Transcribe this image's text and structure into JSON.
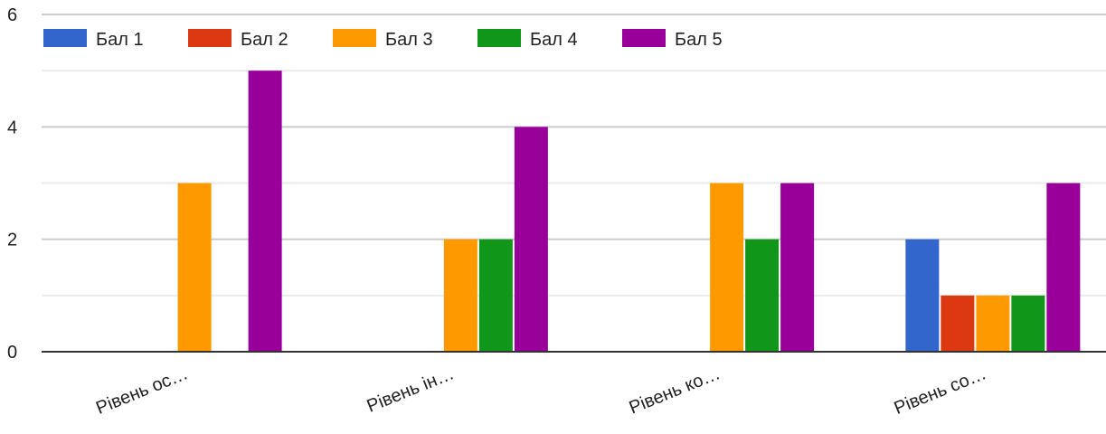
{
  "chart_data": {
    "type": "bar",
    "categories": [
      "Рівень ос…",
      "Рівень ін…",
      "Рівень ко…",
      "Рівень со…"
    ],
    "series": [
      {
        "name": "Бал 1",
        "color": "#3366cc",
        "values": [
          0,
          0,
          0,
          2
        ]
      },
      {
        "name": "Бал 2",
        "color": "#dc3912",
        "values": [
          0,
          0,
          0,
          1
        ]
      },
      {
        "name": "Бал 3",
        "color": "#ff9900",
        "values": [
          3,
          2,
          3,
          1
        ]
      },
      {
        "name": "Бал 4",
        "color": "#109618",
        "values": [
          0,
          2,
          2,
          1
        ]
      },
      {
        "name": "Бал 5",
        "color": "#990099",
        "values": [
          5,
          4,
          3,
          3
        ]
      }
    ],
    "yticks": [
      "0",
      "2",
      "4",
      "6"
    ],
    "ylim": [
      0,
      6
    ],
    "minor_grid_step": 1,
    "grid": true,
    "legend_position": "top-left",
    "title": "",
    "xlabel": "",
    "ylabel": ""
  }
}
